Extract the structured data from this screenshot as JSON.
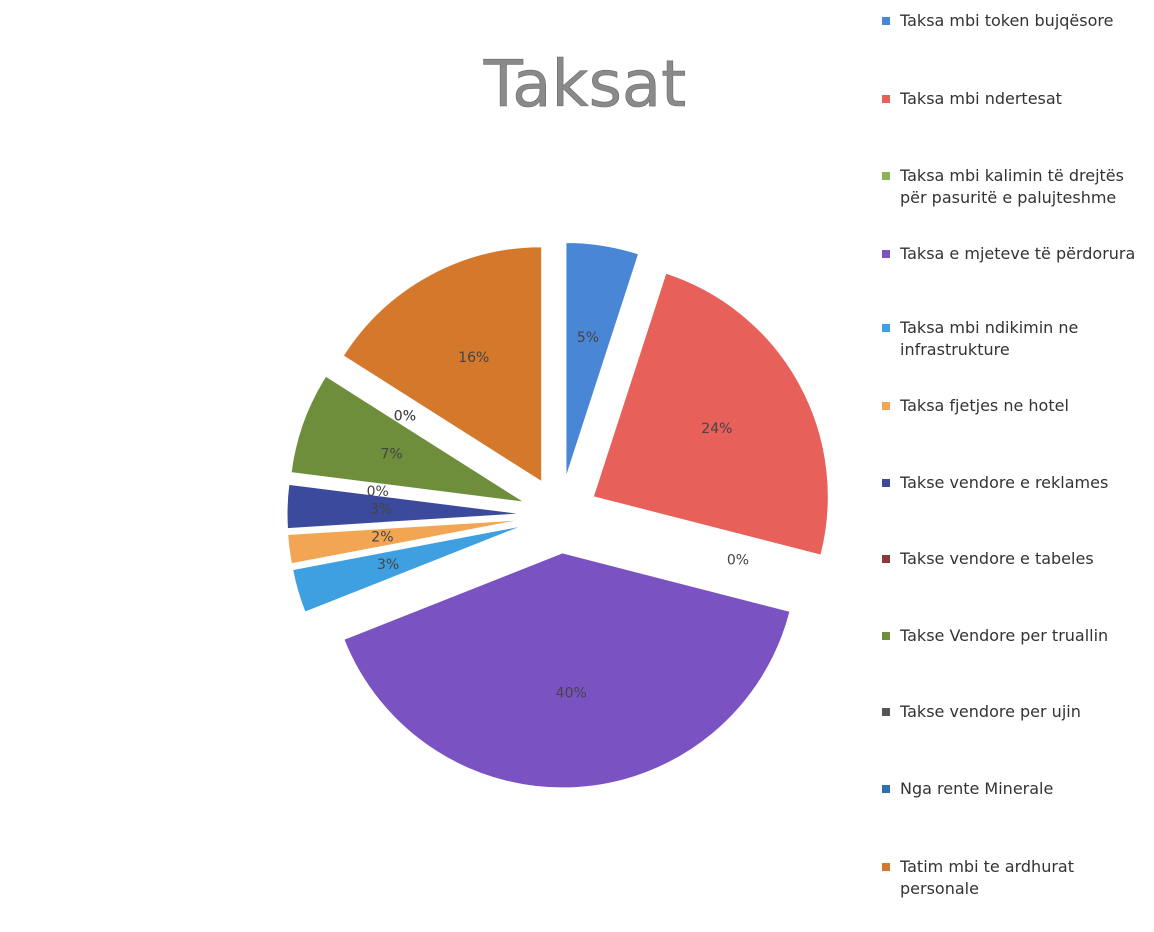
{
  "chart_data": {
    "type": "pie",
    "title": "Taksat",
    "categories": [
      "Taksa mbi token bujqësore",
      "Taksa mbi ndertesat",
      "Taksa mbi kalimin të drejtës për pasuritë e palujteshme",
      "Taksa e mjeteve të përdorura",
      "Taksa mbi ndikimin ne infrastrukture",
      "Taksa fjetjes ne hotel",
      "Takse vendore e reklames",
      "Takse vendore e tabeles",
      "Takse Vendore per truallin",
      "Takse vendore per ujin",
      "Nga rente Minerale",
      "Tatim mbi te ardhurat personale"
    ],
    "values": [
      5,
      24,
      0,
      40,
      3,
      2,
      3,
      0,
      7,
      0,
      0,
      16
    ],
    "value_labels": [
      "5%",
      "24%",
      "0%",
      "40%",
      "3%",
      "2%",
      "3%",
      "0%",
      "7%",
      "0%",
      "0%",
      "16%"
    ],
    "colors": [
      "#4a86d6",
      "#e8605a",
      "#8ab35a",
      "#7b52c2",
      "#3ea0e0",
      "#f2a552",
      "#3b4a9c",
      "#8b3a3a",
      "#6e8e3c",
      "#555555",
      "#2e6fb0",
      "#d4782c"
    ],
    "legend": "right"
  }
}
